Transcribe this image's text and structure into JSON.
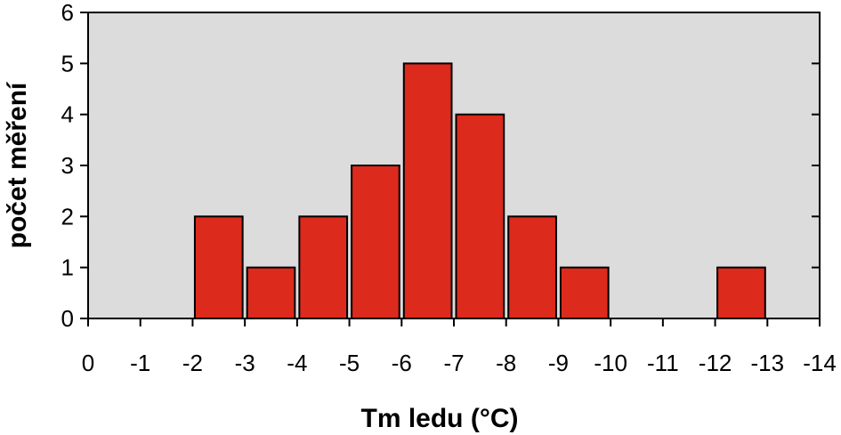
{
  "chart_data": {
    "type": "bar",
    "xlabel": "Tm ledu (°C)",
    "ylabel": "počet měření",
    "xlim": [
      0,
      -14
    ],
    "ylim": [
      0,
      6
    ],
    "x_ticks": [
      0,
      -1,
      -2,
      -3,
      -4,
      -5,
      -6,
      -7,
      -8,
      -9,
      -10,
      -11,
      -12,
      -13,
      -14
    ],
    "y_ticks": [
      0,
      1,
      2,
      3,
      4,
      5,
      6
    ],
    "bars": [
      {
        "from": -2,
        "to": -3,
        "value": 2
      },
      {
        "from": -3,
        "to": -4,
        "value": 1
      },
      {
        "from": -4,
        "to": -5,
        "value": 2
      },
      {
        "from": -5,
        "to": -6,
        "value": 3
      },
      {
        "from": -6,
        "to": -7,
        "value": 5
      },
      {
        "from": -7,
        "to": -8,
        "value": 4
      },
      {
        "from": -8,
        "to": -9,
        "value": 2
      },
      {
        "from": -9,
        "to": -10,
        "value": 1
      },
      {
        "from": -12,
        "to": -13,
        "value": 1
      }
    ],
    "bar_color": "#dc2a1c",
    "plot_background": "#dcdcdc",
    "grid": false,
    "legend": "none"
  }
}
